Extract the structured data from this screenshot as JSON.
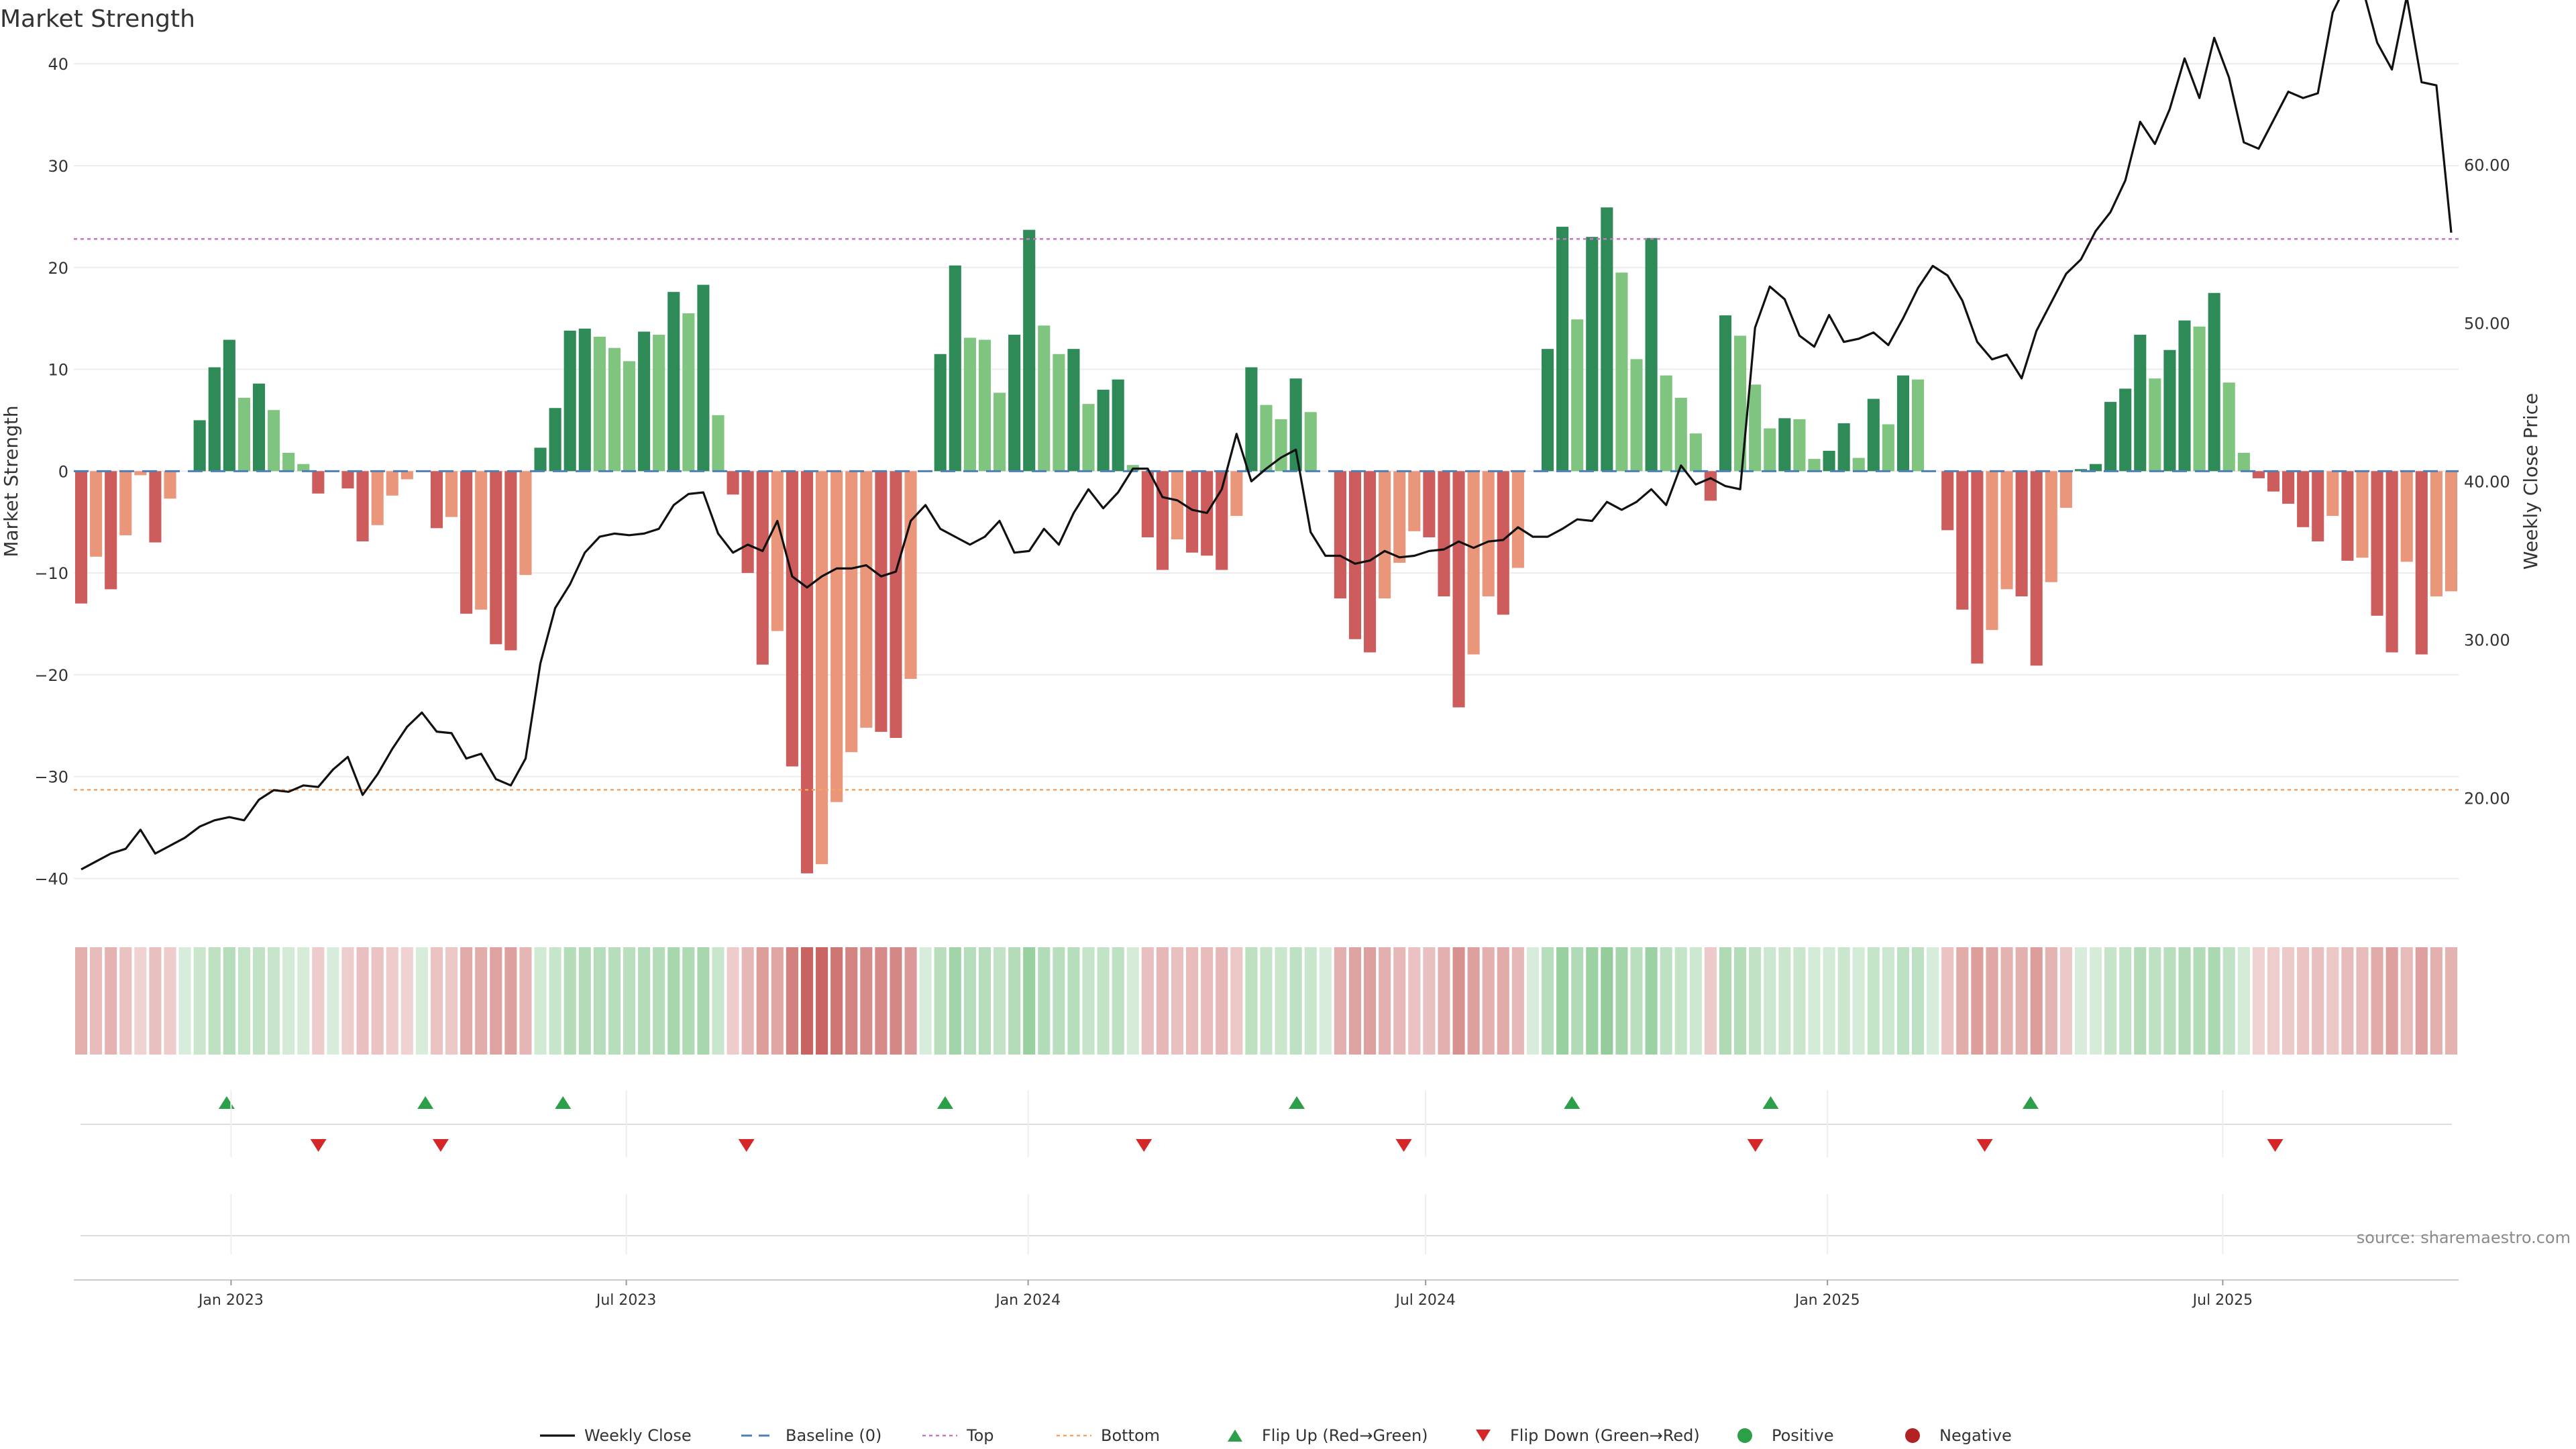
{
  "chart_data": {
    "type": "bar",
    "title": "Market Strength",
    "ylabel": "Market Strength",
    "y2label": "Weekly Close Price",
    "ylim": [
      -43,
      41
    ],
    "y2lim": [
      13,
      67
    ],
    "yticks": [
      "40",
      "30",
      "20",
      "10",
      "0",
      "−10",
      "−20",
      "−30",
      "−40"
    ],
    "y2ticks": [
      "60.00",
      "50.00",
      "40.00",
      "30.00",
      "20.00"
    ],
    "x_start": "2022-10-21",
    "x_end": "2025-10-17",
    "xticks": [
      "Jan 2023",
      "Jul 2023",
      "Jan 2024",
      "Jul 2024",
      "Jan 2025",
      "Jul 2025"
    ],
    "top_level": 22.8,
    "bottom_level": -31.3,
    "strength": [
      -13,
      -8.4,
      -11.6,
      -6.3,
      -0.4,
      -7,
      -2.7,
      0,
      5,
      10.2,
      12.9,
      7.2,
      8.6,
      6,
      1.8,
      0.7,
      -2.2,
      0,
      -1.7,
      -6.9,
      -5.3,
      -2.4,
      -0.8,
      0,
      -5.6,
      -4.5,
      -14,
      -13.6,
      -17,
      -17.6,
      -10.2,
      2.3,
      6.2,
      13.8,
      14,
      13.2,
      12.1,
      10.8,
      13.7,
      13.4,
      17.6,
      15.5,
      18.3,
      5.5,
      -2.3,
      -10,
      -19,
      -15.7,
      -29,
      -39.5,
      -38.6,
      -32.5,
      -27.6,
      -25.2,
      -25.6,
      -26.2,
      -20.4,
      0,
      11.5,
      20.2,
      13.1,
      12.9,
      7.7,
      13.4,
      23.7,
      14.3,
      11.5,
      12,
      6.6,
      8,
      9,
      0.6,
      -6.5,
      -9.7,
      -6.7,
      -8,
      -8.3,
      -9.7,
      -4.4,
      10.2,
      6.5,
      5.1,
      9.1,
      5.8,
      0,
      -12.5,
      -16.5,
      -17.8,
      -12.5,
      -9,
      -5.9,
      -6.5,
      -12.3,
      -23.2,
      -18,
      -12.3,
      -14.1,
      -9.5,
      0,
      12,
      24,
      14.9,
      23,
      25.9,
      19.5,
      11,
      22.9,
      9.4,
      7.2,
      3.7,
      -2.9,
      15.3,
      13.3,
      8.5,
      4.2,
      5.2,
      5.1,
      1.2,
      2,
      4.7,
      1.3,
      7.1,
      4.6,
      9.4,
      9,
      0,
      -5.8,
      -13.6,
      -18.9,
      -15.6,
      -11.6,
      -12.3,
      -19.1,
      -10.9,
      -3.6,
      0.2,
      0.7,
      6.8,
      8.1,
      13.4,
      9.1,
      11.9,
      14.8,
      14.2,
      17.5,
      8.7,
      1.8,
      -0.7,
      -2,
      -3.2,
      -5.5,
      -6.9,
      -4.4,
      -8.8,
      -8.5,
      -14.2,
      -17.8,
      -8.9,
      -18,
      -12.3,
      -11.8
    ],
    "weekly_close": [
      15.5,
      16,
      16.5,
      16.8,
      18,
      16.5,
      17,
      17.5,
      18.2,
      18.6,
      18.8,
      18.6,
      19.9,
      20.5,
      20.4,
      20.8,
      20.7,
      21.8,
      22.6,
      20.2,
      21.5,
      23.1,
      24.5,
      25.4,
      24.2,
      24.1,
      22.5,
      22.8,
      21.2,
      20.8,
      22.5,
      28.5,
      32,
      33.5,
      35.5,
      36.5,
      36.7,
      36.6,
      36.7,
      37,
      38.5,
      39.2,
      39.3,
      36.7,
      35.5,
      36,
      35.6,
      37.5,
      34,
      33.3,
      34,
      34.5,
      34.5,
      34.7,
      34,
      34.3,
      37.5,
      38.5,
      37,
      36.5,
      36,
      36.5,
      37.5,
      35.5,
      35.6,
      37,
      36,
      38,
      39.5,
      38.3,
      39.3,
      40.8,
      40.8,
      39,
      38.8,
      38.2,
      38,
      39.5,
      43,
      40,
      40.8,
      41.5,
      42,
      36.8,
      35.3,
      35.3,
      34.8,
      35,
      35.6,
      35.2,
      35.3,
      35.6,
      35.7,
      36.2,
      35.8,
      36.2,
      36.3,
      37.1,
      36.5,
      36.5,
      37,
      37.6,
      37.5,
      38.7,
      38.2,
      38.7,
      39.5,
      38.5,
      41,
      39.8,
      40.2,
      39.7,
      39.5,
      49.7,
      52.3,
      51.5,
      49.2,
      48.5,
      50.5,
      48.8,
      49,
      49.4,
      48.6,
      50.3,
      52.2,
      53.6,
      53,
      51.4,
      48.8,
      47.7,
      48,
      46.5,
      49.5,
      51.3,
      53.1,
      54,
      55.8,
      57,
      59,
      62.7,
      61.3,
      63.5,
      66.7,
      64.2,
      68,
      65.5,
      61.4,
      61,
      62.8,
      64.6,
      64.2,
      64.5,
      69.6,
      71.5,
      71.2,
      67.7,
      66,
      70.6,
      65.2,
      65,
      55.7
    ],
    "bar_colors": {
      "strong_green": "#2e8b57",
      "light_green": "#7fc47f",
      "strong_red": "#cd5c5c",
      "light_red": "#e9967a"
    },
    "line_color": "#111111",
    "top_color": "#c875c4",
    "bottom_color": "#f4a460",
    "baseline_color": "#4f7fb3",
    "flip_up_color": "#2ca048",
    "flip_down_color": "#d62728",
    "flip_up_dates": [
      "2022-12-30",
      "2023-03-31",
      "2023-06-02",
      "2023-11-24",
      "2024-05-03",
      "2024-09-06",
      "2024-12-06",
      "2025-04-04"
    ],
    "flip_down_dates": [
      "2023-02-10",
      "2023-04-07",
      "2023-08-25",
      "2024-02-23",
      "2024-06-21",
      "2024-11-29",
      "2025-03-14",
      "2025-07-25"
    ],
    "source": "source: sharemaestro.com",
    "legend": [
      {
        "label": "Weekly Close",
        "kind": "line",
        "color": "#111111"
      },
      {
        "label": "Baseline (0)",
        "kind": "dash",
        "color": "#4f7fb3"
      },
      {
        "label": "Top",
        "kind": "dot",
        "color": "#c875c4"
      },
      {
        "label": "Bottom",
        "kind": "dot",
        "color": "#f4a460"
      },
      {
        "label": "Flip Up (Red→Green)",
        "kind": "tri-up",
        "color": "#2ca048"
      },
      {
        "label": "Flip Down (Green→Red)",
        "kind": "tri-down",
        "color": "#d62728"
      },
      {
        "label": "Positive",
        "kind": "dot-marker",
        "color": "#2ca048"
      },
      {
        "label": "Negative",
        "kind": "dot-marker",
        "color": "#b22222"
      }
    ]
  }
}
